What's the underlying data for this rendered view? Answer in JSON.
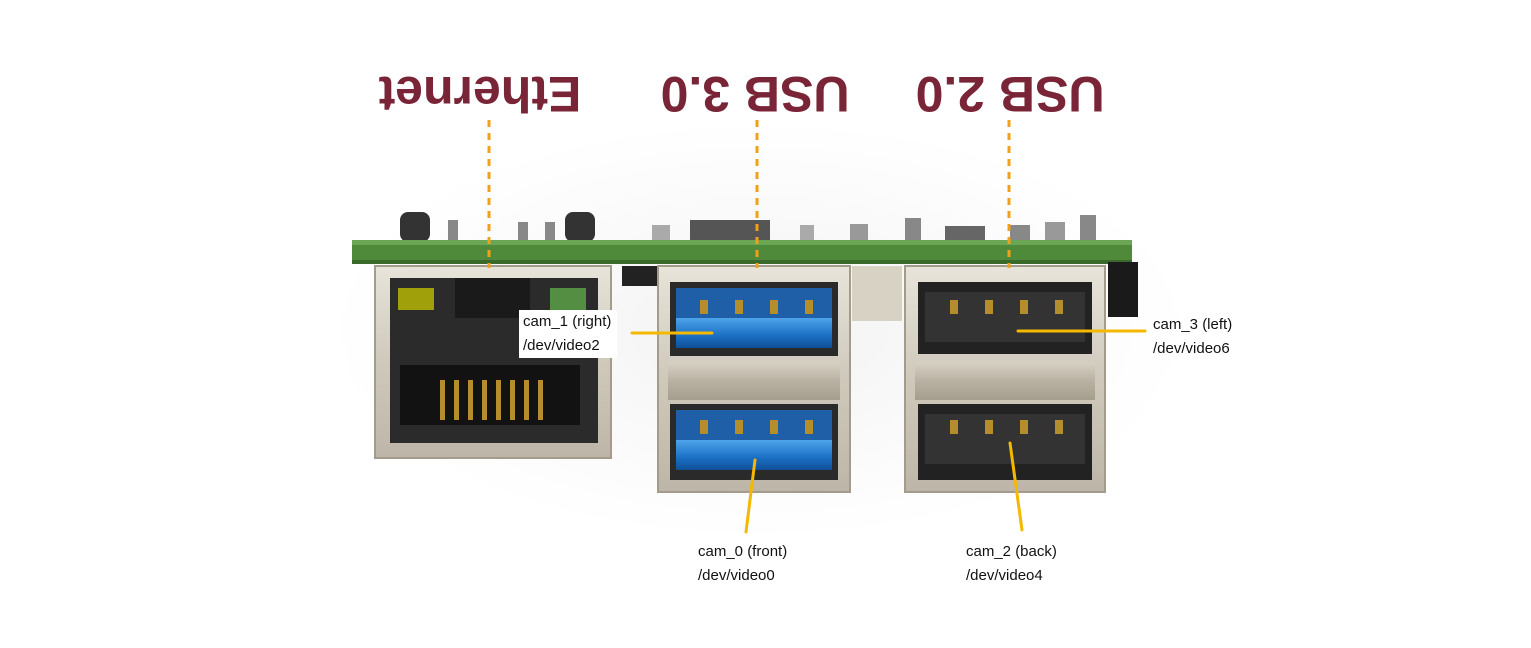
{
  "headers": {
    "ethernet": "Ethernet",
    "usb3": "USB 3.0",
    "usb2": "USB 2.0"
  },
  "cameras": {
    "cam_1": {
      "name": "cam_1 (right)",
      "device": "/dev/video2"
    },
    "cam_0": {
      "name": "cam_0 (front)",
      "device": "/dev/video0"
    },
    "cam_3": {
      "name": "cam_3 (left)",
      "device": "/dev/video6"
    },
    "cam_2": {
      "name": "cam_2 (back)",
      "device": "/dev/video4"
    }
  },
  "colors": {
    "header_text": "#7a2437",
    "dashed_guide": "#f2a019",
    "callout_line": "#f5b800",
    "pcb_green": "#4f8a3a",
    "usb3_blue": "#1a6fc4"
  }
}
